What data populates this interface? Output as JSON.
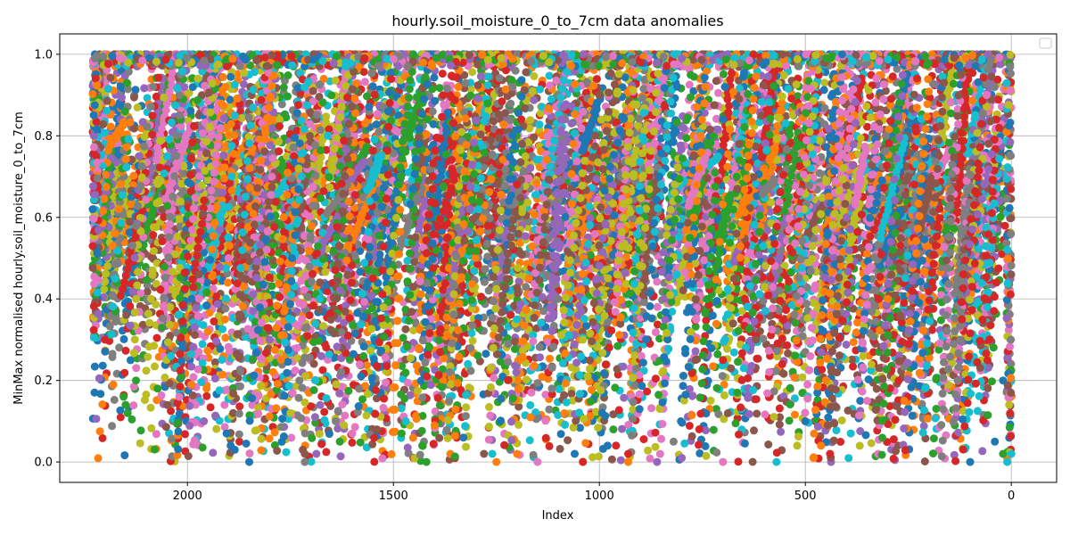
{
  "chart_data": {
    "type": "scatter",
    "title": "hourly.soil_moisture_0_to_7cm data anomalies",
    "xlabel": "Index",
    "ylabel": "MinMax normalised hourly.soil_moisture_0_to_7cm",
    "xlim": [
      2310,
      -110
    ],
    "ylim": [
      -0.05,
      1.05
    ],
    "x_reversed": true,
    "x_ticks": [
      2000,
      1500,
      1000,
      500,
      0
    ],
    "y_ticks": [
      0.0,
      0.2,
      0.4,
      0.6,
      0.8,
      1.0
    ],
    "grid": true,
    "legend": "top-right, empty",
    "x_range": [
      0,
      2230
    ],
    "y_range": [
      0,
      1
    ],
    "series_colors": [
      "#1f77b4",
      "#ff7f0e",
      "#2ca02c",
      "#d62728",
      "#9467bd",
      "#8c564b",
      "#e377c2",
      "#7f7f7f",
      "#bcbd22",
      "#17becf"
    ],
    "series": [
      {
        "color": "#1f77b4",
        "points": [
          [
            2230,
            0.62
          ],
          [
            1905,
            0.07
          ],
          [
            1895,
            0.04
          ],
          [
            1885,
            0.03
          ],
          [
            1850,
            0.0
          ],
          [
            1060,
            0.02
          ],
          [
            980,
            0.04
          ],
          [
            100,
            0.0
          ],
          [
            40,
            0.05
          ],
          [
            20,
            0.2
          ],
          [
            500,
            0.1
          ],
          [
            1330,
            0.06
          ]
        ]
      },
      {
        "color": "#ff7f0e",
        "points": [
          [
            2180,
            0.19
          ],
          [
            1990,
            0.19
          ],
          [
            1250,
            0.0
          ],
          [
            1200,
            0.02
          ],
          [
            930,
            0.0
          ],
          [
            480,
            0.01
          ],
          [
            600,
            0.72
          ],
          [
            260,
            0.15
          ],
          [
            1400,
            0.09
          ],
          [
            300,
            0.4
          ]
        ]
      },
      {
        "color": "#2ca02c",
        "points": [
          [
            2155,
            0.16
          ],
          [
            2150,
            0.14
          ],
          [
            2145,
            0.12
          ],
          [
            2125,
            0.2
          ],
          [
            1480,
            0.07
          ],
          [
            1430,
            0.04
          ],
          [
            1420,
            0.0
          ],
          [
            1630,
            0.05
          ],
          [
            780,
            0.55
          ],
          [
            20,
            0.02
          ]
        ]
      },
      {
        "color": "#d62728",
        "points": [
          [
            2200,
            0.3
          ],
          [
            1040,
            0.0
          ],
          [
            930,
            0.02
          ],
          [
            440,
            0.02
          ],
          [
            900,
            0.98
          ],
          [
            120,
            0.35
          ],
          [
            1550,
            0.45
          ],
          [
            700,
            0.25
          ]
        ]
      },
      {
        "color": "#9467bd",
        "points": [
          [
            1960,
            0.1
          ],
          [
            1690,
            0.11
          ],
          [
            860,
            0.0
          ],
          [
            800,
            0.01
          ],
          [
            800,
            0.99
          ],
          [
            400,
            0.6
          ],
          [
            1800,
            0.3
          ]
        ]
      },
      {
        "color": "#8c564b",
        "points": [
          [
            1720,
            0.03
          ],
          [
            1715,
            0.02
          ],
          [
            1540,
            0.08
          ],
          [
            1280,
            0.02
          ],
          [
            1000,
            0.9
          ],
          [
            250,
            0.7
          ],
          [
            620,
            0.3
          ]
        ]
      },
      {
        "color": "#e377c2",
        "points": [
          [
            2020,
            0.16
          ],
          [
            1600,
            0.07
          ],
          [
            1150,
            0.0
          ],
          [
            700,
            0.0
          ],
          [
            60,
            0.9
          ],
          [
            1900,
            0.5
          ],
          [
            350,
            0.15
          ]
        ]
      },
      {
        "color": "#7f7f7f",
        "points": [
          [
            1715,
            0.0
          ],
          [
            1640,
            0.1
          ],
          [
            820,
            0.05
          ],
          [
            1,
            0.3
          ],
          [
            1,
            0.56
          ],
          [
            1100,
            0.4
          ]
        ]
      },
      {
        "color": "#bcbd22",
        "points": [
          [
            1750,
            0.12
          ],
          [
            1620,
            0.09
          ],
          [
            1460,
            0.09
          ],
          [
            520,
            0.04
          ],
          [
            1730,
            0.72
          ],
          [
            1040,
            0.3
          ]
        ]
      },
      {
        "color": "#17becf",
        "points": [
          [
            2040,
            0.26
          ],
          [
            1470,
            0.1
          ],
          [
            1260,
            0.02
          ],
          [
            570,
            0.0
          ],
          [
            10,
            0.0
          ],
          [
            0,
            0.02
          ],
          [
            1200,
            0.35
          ]
        ]
      }
    ]
  }
}
